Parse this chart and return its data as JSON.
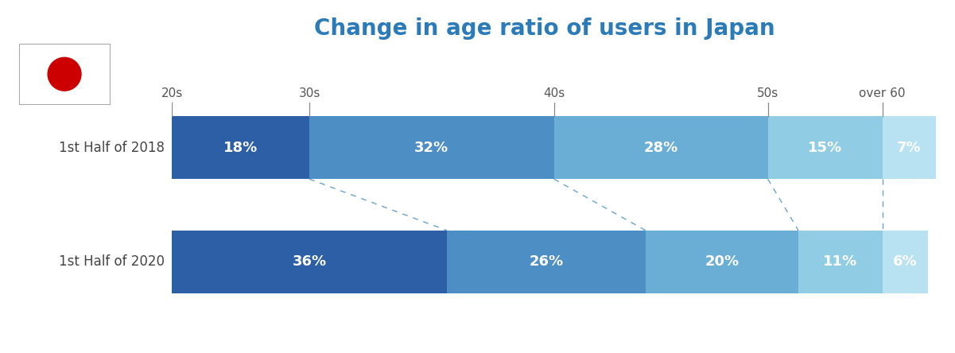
{
  "title": "Change in age ratio of users in Japan",
  "title_color": "#2b7bb9",
  "title_fontsize": 20,
  "rows": [
    "1st Half of 2018",
    "1st Half of 2020"
  ],
  "categories": [
    "20s",
    "30s",
    "40s",
    "50s",
    "over 60"
  ],
  "values_2018": [
    18,
    32,
    28,
    15,
    7
  ],
  "values_2020": [
    36,
    26,
    20,
    11,
    6
  ],
  "bar_colors": [
    "#2d5fa6",
    "#4d8fc4",
    "#6aaed6",
    "#90cce4",
    "#b8e2f2"
  ],
  "dash_color": "#5599cc",
  "text_color": "#ffffff",
  "label_color": "#555555",
  "background_color": "#ffffff",
  "figsize": [
    12.01,
    4.44
  ],
  "dpi": 100
}
